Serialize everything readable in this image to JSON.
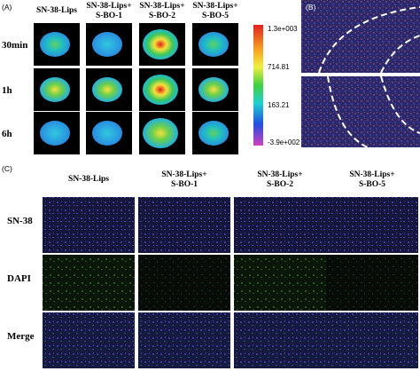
{
  "panel_a": {
    "label": "(A)",
    "columns": [
      [
        "SN-38-Lips"
      ],
      [
        "SN-38-Lips+",
        "S-BO-1"
      ],
      [
        "SN-38-Lips+",
        "S-BO-2"
      ],
      [
        "SN-38-Lips+",
        "S-BO-5"
      ]
    ],
    "rows": [
      "30min",
      "1h",
      "6h"
    ],
    "colorbar_ticks": [
      "1.3e+003",
      "714.81",
      "163.21",
      "-3.9e+002"
    ]
  },
  "panel_b": {
    "label": "(B)"
  },
  "panel_c": {
    "label": "(C)",
    "columns": [
      [
        "SN-38-Lips"
      ],
      [
        "SN-38-Lips+",
        "S-BO-1"
      ],
      [
        "SN-38-Lips+",
        "S-BO-2"
      ],
      [
        "SN-38-Lips+",
        "S-BO-5"
      ]
    ],
    "rows": [
      "SN-38",
      "DAPI",
      "Merge"
    ]
  }
}
